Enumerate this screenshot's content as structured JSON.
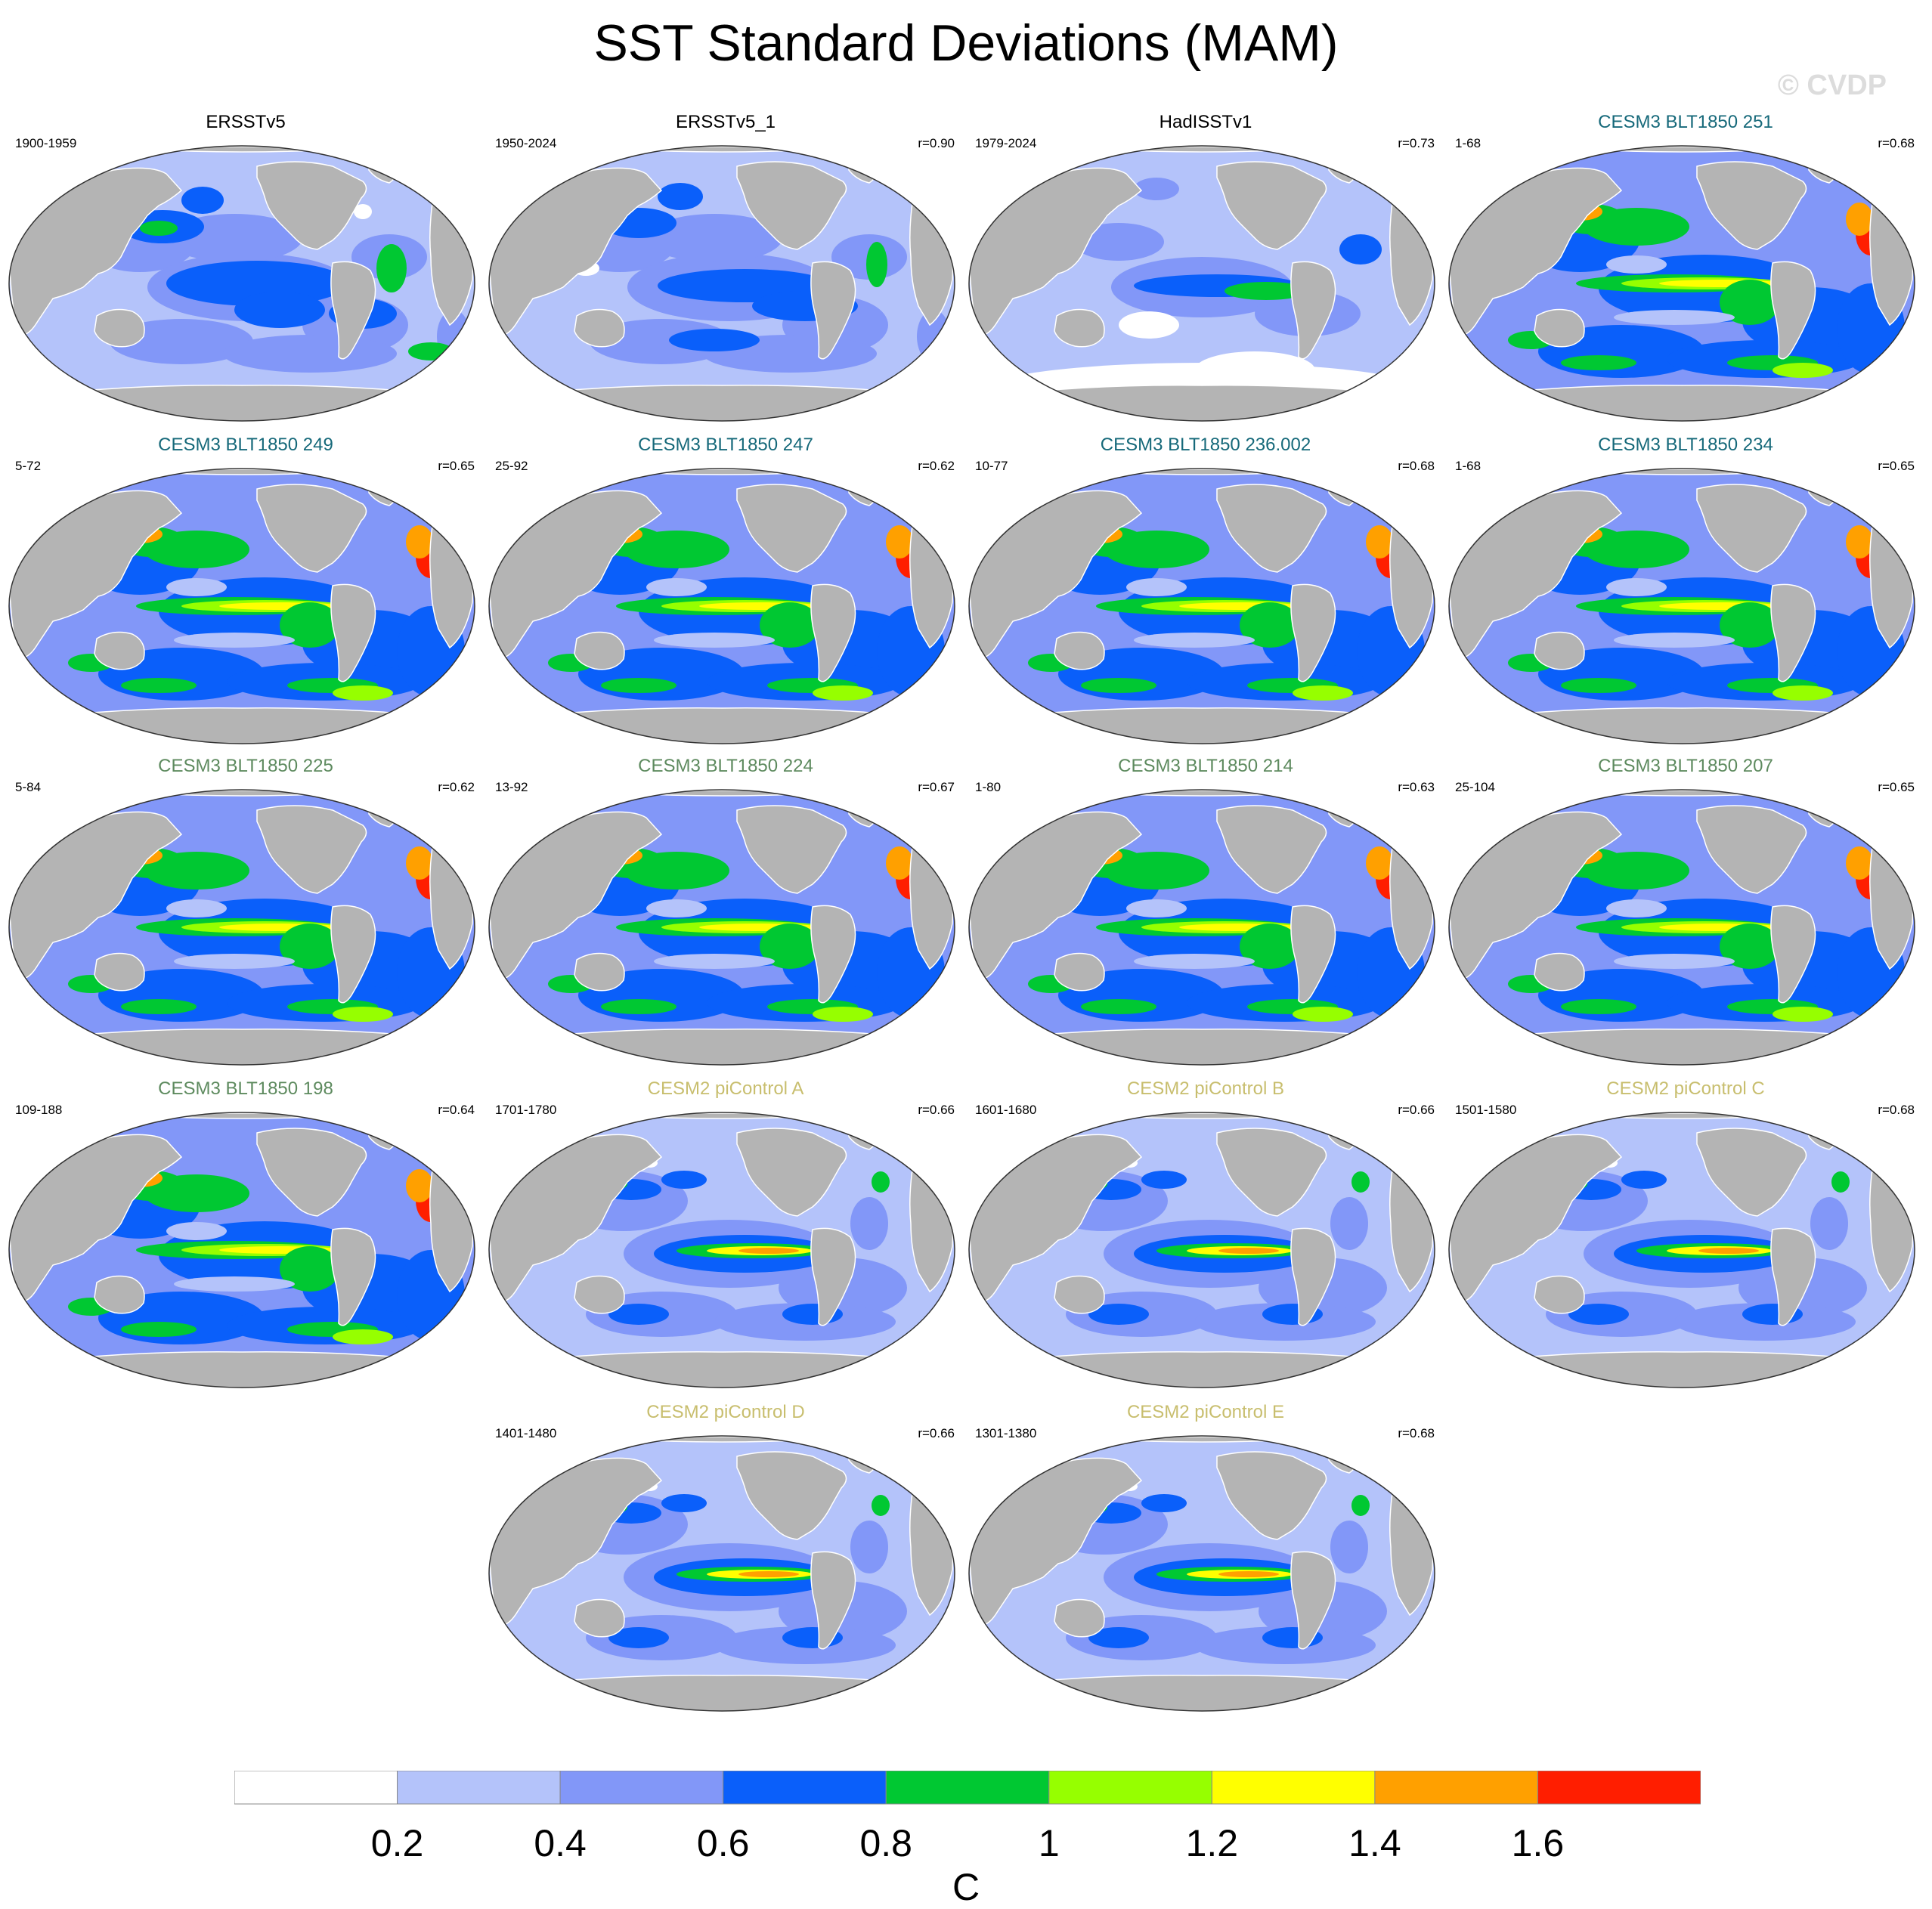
{
  "title": "SST Standard Deviations (MAM)",
  "watermark": "© CVDP",
  "colors": {
    "land": "#b4b4b4",
    "title_obs": "#000000",
    "title_cesm3_dark": "#16697a",
    "title_cesm3_green": "#5d8a5e",
    "title_cesm2": "#c8be6e"
  },
  "panels": [
    {
      "title": "ERSSTv5",
      "years": "1900-1959",
      "corr": "",
      "group": "obs",
      "style": "obs1"
    },
    {
      "title": "ERSSTv5_1",
      "years": "1950-2024",
      "corr": "r=0.90",
      "group": "obs",
      "style": "obs2"
    },
    {
      "title": "HadISSTv1",
      "years": "1979-2024",
      "corr": "r=0.73",
      "group": "obs",
      "style": "obs3"
    },
    {
      "title": "CESM3 BLT1850 251",
      "years": "1-68",
      "corr": "r=0.68",
      "group": "cesm3a",
      "style": "cesm3"
    },
    {
      "title": "CESM3 BLT1850 249",
      "years": "5-72",
      "corr": "r=0.65",
      "group": "cesm3a",
      "style": "cesm3"
    },
    {
      "title": "CESM3 BLT1850 247",
      "years": "25-92",
      "corr": "r=0.62",
      "group": "cesm3a",
      "style": "cesm3"
    },
    {
      "title": "CESM3 BLT1850 236.002",
      "years": "10-77",
      "corr": "r=0.68",
      "group": "cesm3a",
      "style": "cesm3"
    },
    {
      "title": "CESM3 BLT1850 234",
      "years": "1-68",
      "corr": "r=0.65",
      "group": "cesm3a",
      "style": "cesm3"
    },
    {
      "title": "CESM3 BLT1850 225",
      "years": "5-84",
      "corr": "r=0.62",
      "group": "cesm3b",
      "style": "cesm3"
    },
    {
      "title": "CESM3 BLT1850 224",
      "years": "13-92",
      "corr": "r=0.67",
      "group": "cesm3b",
      "style": "cesm3"
    },
    {
      "title": "CESM3 BLT1850 214",
      "years": "1-80",
      "corr": "r=0.63",
      "group": "cesm3b",
      "style": "cesm3"
    },
    {
      "title": "CESM3 BLT1850 207",
      "years": "25-104",
      "corr": "r=0.65",
      "group": "cesm3b",
      "style": "cesm3"
    },
    {
      "title": "CESM3 BLT1850 198",
      "years": "109-188",
      "corr": "r=0.64",
      "group": "cesm3b",
      "style": "cesm3"
    },
    {
      "title": "CESM2 piControl A",
      "years": "1701-1780",
      "corr": "r=0.66",
      "group": "cesm2",
      "style": "cesm2"
    },
    {
      "title": "CESM2 piControl B",
      "years": "1601-1680",
      "corr": "r=0.66",
      "group": "cesm2",
      "style": "cesm2"
    },
    {
      "title": "CESM2 piControl C",
      "years": "1501-1580",
      "corr": "r=0.68",
      "group": "cesm2",
      "style": "cesm2"
    },
    {
      "title": "CESM2 piControl D",
      "years": "1401-1480",
      "corr": "r=0.66",
      "group": "cesm2",
      "style": "cesm2"
    },
    {
      "title": "CESM2 piControl E",
      "years": "1301-1380",
      "corr": "r=0.68",
      "group": "cesm2",
      "style": "cesm2"
    }
  ],
  "colorbar": {
    "colors": [
      "#ffffff",
      "#b4c3fa",
      "#8297f8",
      "#0a5ffa",
      "#00c832",
      "#96ff00",
      "#ffff00",
      "#ffa000",
      "#ff1e00"
    ],
    "labels": [
      "0.2",
      "0.4",
      "0.6",
      "0.8",
      "1",
      "1.2",
      "1.4",
      "1.6"
    ],
    "units": "C"
  }
}
